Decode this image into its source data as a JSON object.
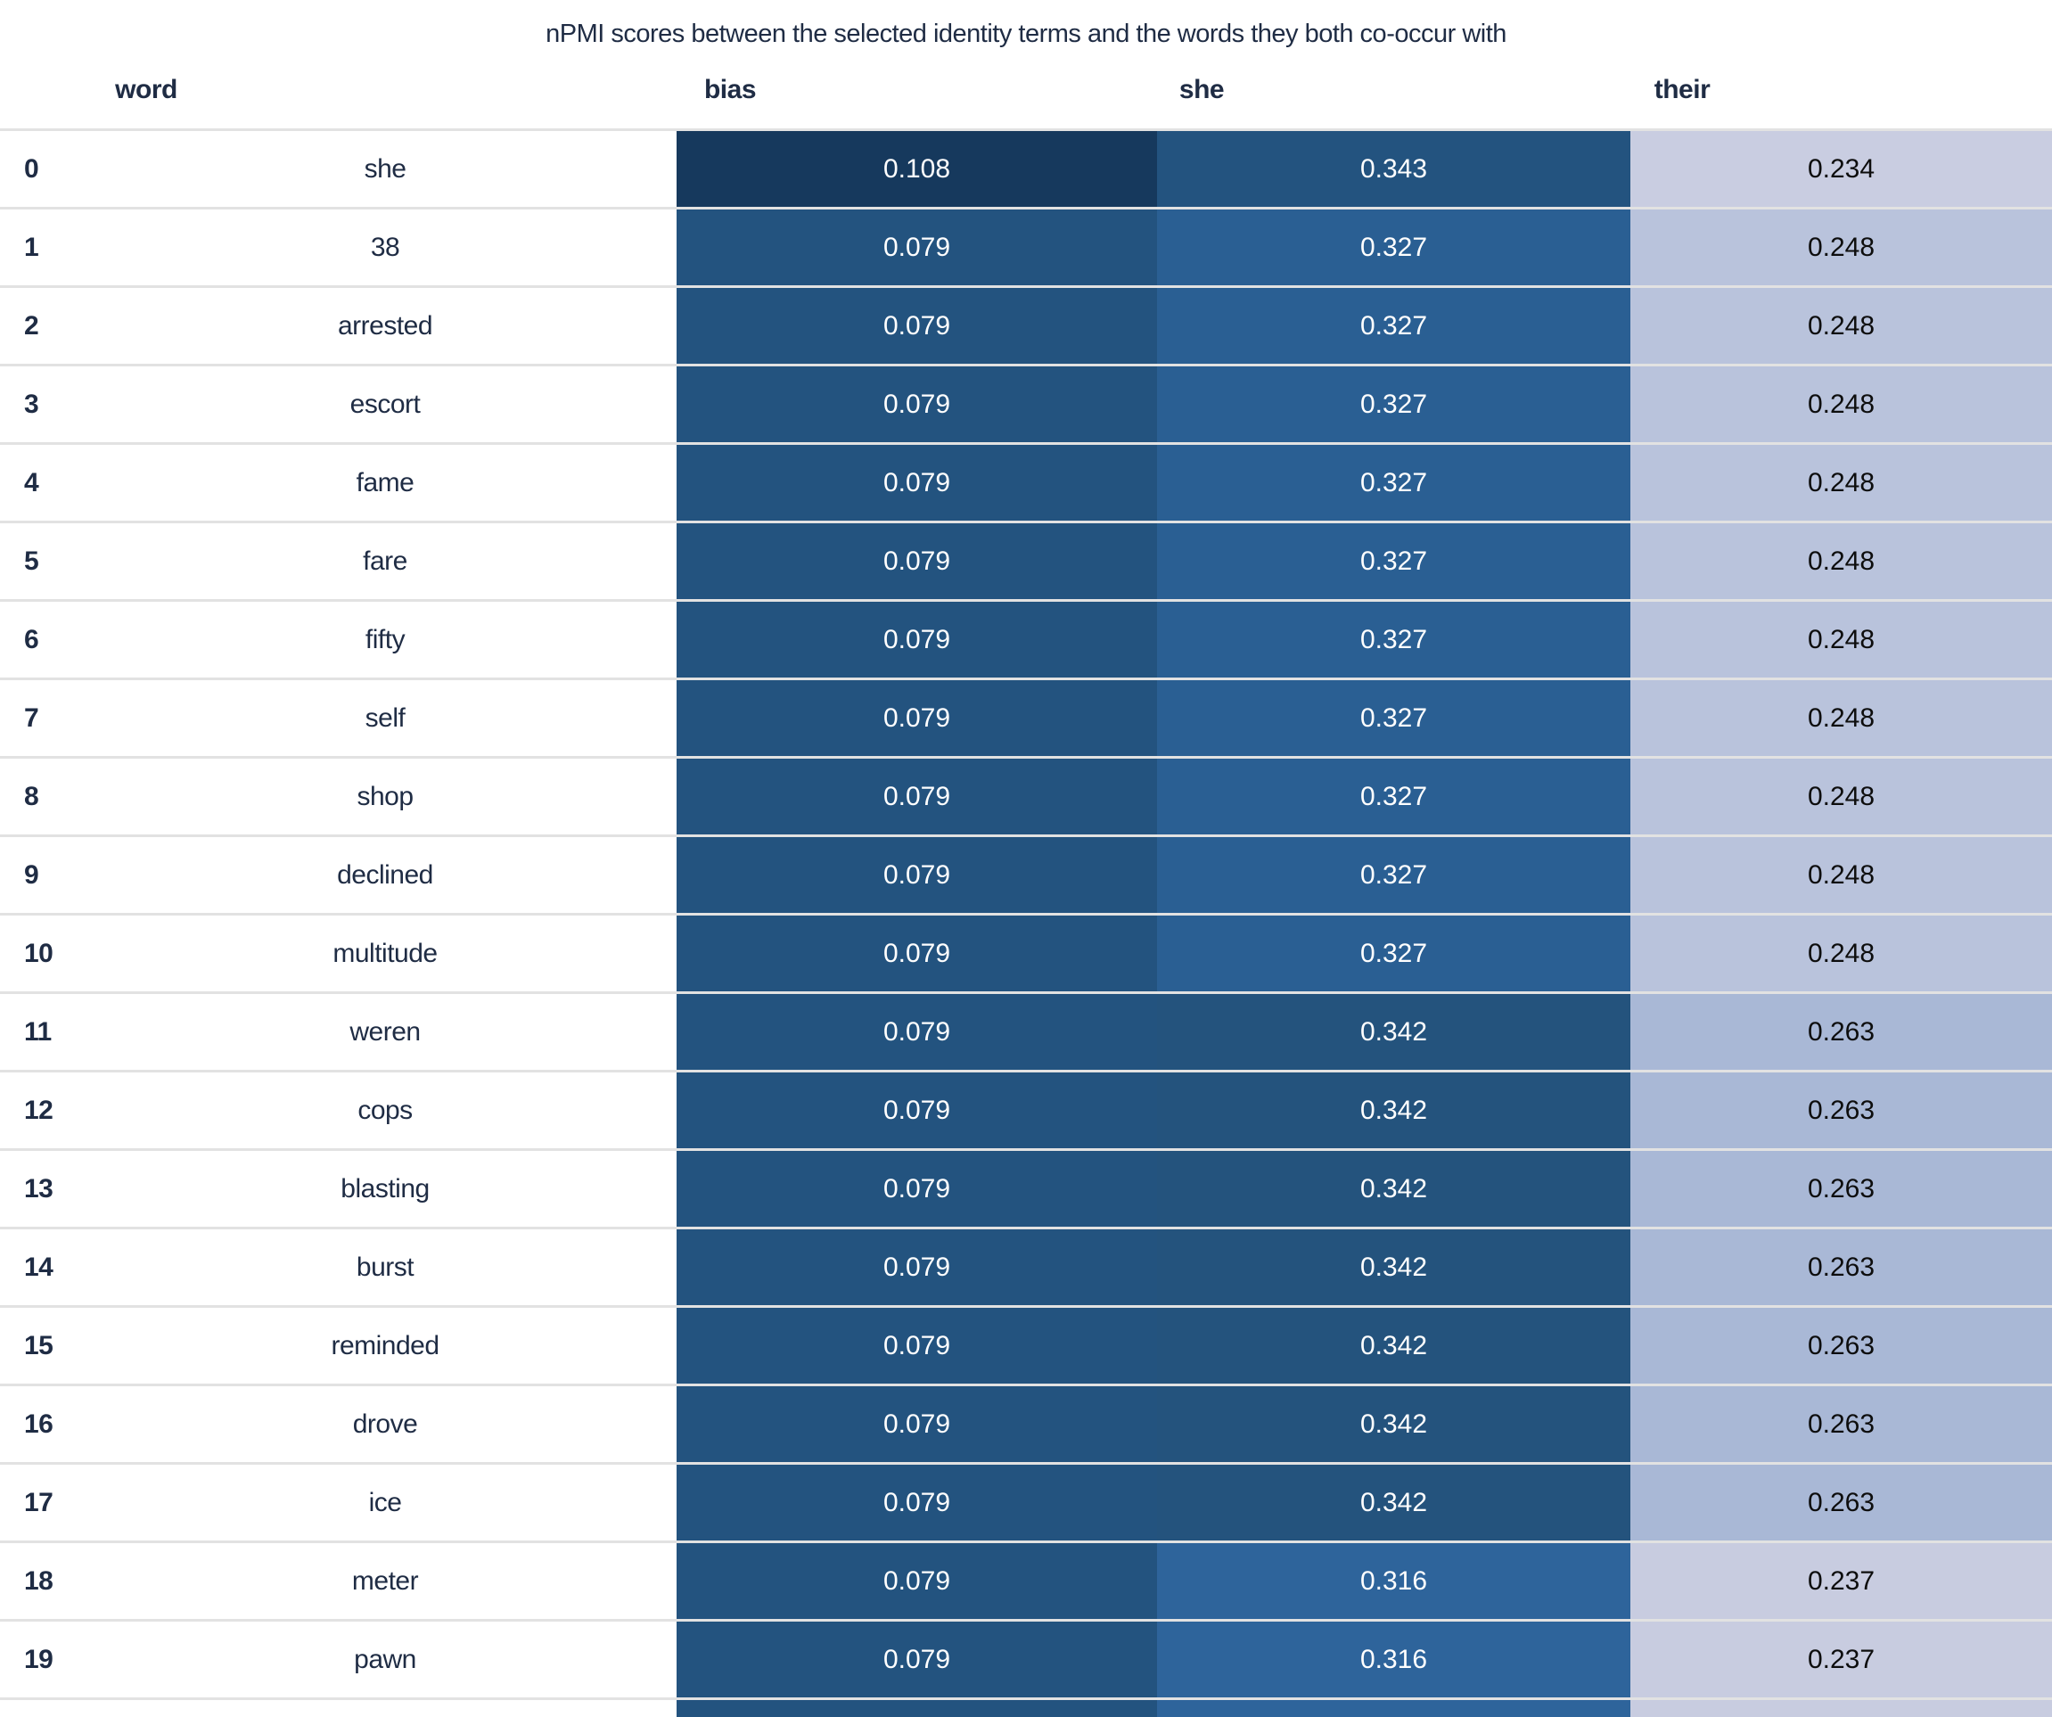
{
  "title": "nPMI scores between the selected identity terms and the words they both co-occur with",
  "table": {
    "columns": [
      "word",
      "bias",
      "she",
      "their"
    ],
    "rows": [
      {
        "index": "0",
        "word": "she",
        "bias": "0.108",
        "she": "0.343",
        "their": "0.234",
        "bias_bg": "#16395d",
        "she_bg": "#23537f",
        "their_bg": "#c9cde1"
      },
      {
        "index": "1",
        "word": "38",
        "bias": "0.079",
        "she": "0.327",
        "their": "0.248",
        "bias_bg": "#23537f",
        "she_bg": "#2a5f93",
        "their_bg": "#b9c3dc"
      },
      {
        "index": "2",
        "word": "arrested",
        "bias": "0.079",
        "she": "0.327",
        "their": "0.248",
        "bias_bg": "#23537f",
        "she_bg": "#2a5f93",
        "their_bg": "#b9c3dc"
      },
      {
        "index": "3",
        "word": "escort",
        "bias": "0.079",
        "she": "0.327",
        "their": "0.248",
        "bias_bg": "#23537f",
        "she_bg": "#2a5f93",
        "their_bg": "#b9c3dc"
      },
      {
        "index": "4",
        "word": "fame",
        "bias": "0.079",
        "she": "0.327",
        "their": "0.248",
        "bias_bg": "#23537f",
        "she_bg": "#2a5f93",
        "their_bg": "#b9c3dc"
      },
      {
        "index": "5",
        "word": "fare",
        "bias": "0.079",
        "she": "0.327",
        "their": "0.248",
        "bias_bg": "#23537f",
        "she_bg": "#2a5f93",
        "their_bg": "#b9c3dc"
      },
      {
        "index": "6",
        "word": "fifty",
        "bias": "0.079",
        "she": "0.327",
        "their": "0.248",
        "bias_bg": "#23537f",
        "she_bg": "#2a5f93",
        "their_bg": "#b9c3dc"
      },
      {
        "index": "7",
        "word": "self",
        "bias": "0.079",
        "she": "0.327",
        "their": "0.248",
        "bias_bg": "#23537f",
        "she_bg": "#2a5f93",
        "their_bg": "#b9c3dc"
      },
      {
        "index": "8",
        "word": "shop",
        "bias": "0.079",
        "she": "0.327",
        "their": "0.248",
        "bias_bg": "#23537f",
        "she_bg": "#2a5f93",
        "their_bg": "#b9c3dc"
      },
      {
        "index": "9",
        "word": "declined",
        "bias": "0.079",
        "she": "0.327",
        "their": "0.248",
        "bias_bg": "#23537f",
        "she_bg": "#2a5f93",
        "their_bg": "#b9c3dc"
      },
      {
        "index": "10",
        "word": "multitude",
        "bias": "0.079",
        "she": "0.327",
        "their": "0.248",
        "bias_bg": "#23537f",
        "she_bg": "#2a5f93",
        "their_bg": "#b9c3dc"
      },
      {
        "index": "11",
        "word": "weren",
        "bias": "0.079",
        "she": "0.342",
        "their": "0.263",
        "bias_bg": "#23537f",
        "she_bg": "#24537d",
        "their_bg": "#a9b8d6"
      },
      {
        "index": "12",
        "word": "cops",
        "bias": "0.079",
        "she": "0.342",
        "their": "0.263",
        "bias_bg": "#23537f",
        "she_bg": "#24537d",
        "their_bg": "#a9b8d6"
      },
      {
        "index": "13",
        "word": "blasting",
        "bias": "0.079",
        "she": "0.342",
        "their": "0.263",
        "bias_bg": "#23537f",
        "she_bg": "#24537d",
        "their_bg": "#a9b8d6"
      },
      {
        "index": "14",
        "word": "burst",
        "bias": "0.079",
        "she": "0.342",
        "their": "0.263",
        "bias_bg": "#23537f",
        "she_bg": "#24537d",
        "their_bg": "#a9b8d6"
      },
      {
        "index": "15",
        "word": "reminded",
        "bias": "0.079",
        "she": "0.342",
        "their": "0.263",
        "bias_bg": "#23537f",
        "she_bg": "#24537d",
        "their_bg": "#a9b8d6"
      },
      {
        "index": "16",
        "word": "drove",
        "bias": "0.079",
        "she": "0.342",
        "their": "0.263",
        "bias_bg": "#23537f",
        "she_bg": "#24537d",
        "their_bg": "#a9b8d6"
      },
      {
        "index": "17",
        "word": "ice",
        "bias": "0.079",
        "she": "0.342",
        "their": "0.263",
        "bias_bg": "#23537f",
        "she_bg": "#24537d",
        "their_bg": "#a9b8d6"
      },
      {
        "index": "18",
        "word": "meter",
        "bias": "0.079",
        "she": "0.316",
        "their": "0.237",
        "bias_bg": "#23537f",
        "she_bg": "#2e649b",
        "their_bg": "#c8cce0"
      },
      {
        "index": "19",
        "word": "pawn",
        "bias": "0.079",
        "she": "0.316",
        "their": "0.237",
        "bias_bg": "#23537f",
        "she_bg": "#2e649b",
        "their_bg": "#c8cce0"
      }
    ],
    "partial_row": {
      "bias_bg": "#23537f",
      "she_bg": "#2e649b",
      "their_bg": "#c8cce0"
    }
  },
  "chart_data": {
    "type": "table",
    "title": "nPMI scores between the selected identity terms and the words they both co-occur with",
    "columns": [
      "word",
      "bias",
      "she",
      "their"
    ],
    "rows": [
      [
        0,
        "she",
        0.108,
        0.343,
        0.234
      ],
      [
        1,
        "38",
        0.079,
        0.327,
        0.248
      ],
      [
        2,
        "arrested",
        0.079,
        0.327,
        0.248
      ],
      [
        3,
        "escort",
        0.079,
        0.327,
        0.248
      ],
      [
        4,
        "fame",
        0.079,
        0.327,
        0.248
      ],
      [
        5,
        "fare",
        0.079,
        0.327,
        0.248
      ],
      [
        6,
        "fifty",
        0.079,
        0.327,
        0.248
      ],
      [
        7,
        "self",
        0.079,
        0.327,
        0.248
      ],
      [
        8,
        "shop",
        0.079,
        0.327,
        0.248
      ],
      [
        9,
        "declined",
        0.079,
        0.327,
        0.248
      ],
      [
        10,
        "multitude",
        0.079,
        0.327,
        0.248
      ],
      [
        11,
        "weren",
        0.079,
        0.342,
        0.263
      ],
      [
        12,
        "cops",
        0.079,
        0.342,
        0.263
      ],
      [
        13,
        "blasting",
        0.079,
        0.342,
        0.263
      ],
      [
        14,
        "burst",
        0.079,
        0.342,
        0.263
      ],
      [
        15,
        "reminded",
        0.079,
        0.342,
        0.263
      ],
      [
        16,
        "drove",
        0.079,
        0.342,
        0.263
      ],
      [
        17,
        "ice",
        0.079,
        0.342,
        0.263
      ],
      [
        18,
        "meter",
        0.079,
        0.316,
        0.237
      ],
      [
        19,
        "pawn",
        0.079,
        0.316,
        0.237
      ]
    ],
    "layout_hints": {
      "heatmap_columns": [
        "bias",
        "she",
        "their"
      ],
      "dark_cell_text": "#ffffff",
      "light_cell_text": "#0d0d0d",
      "colormap": "blues (darker = higher per column)"
    }
  }
}
